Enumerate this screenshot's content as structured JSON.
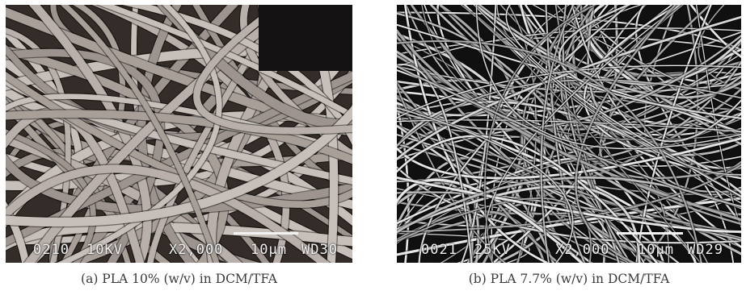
{
  "panels": [
    {
      "caption": "(a)  PLA 10% (w/v) in DCM/TFA",
      "databar": {
        "id": "0210",
        "voltage": "10KV",
        "magnification": "X2,000",
        "scale": "10µm",
        "wd": "WD30"
      }
    },
    {
      "caption": "(b)  PLA 7.7% (w/v) in DCM/TFA",
      "databar": {
        "id": "0021",
        "voltage": "25KV",
        "magnification": "X2,000",
        "scale": "10µm",
        "wd": "WD29"
      }
    }
  ]
}
